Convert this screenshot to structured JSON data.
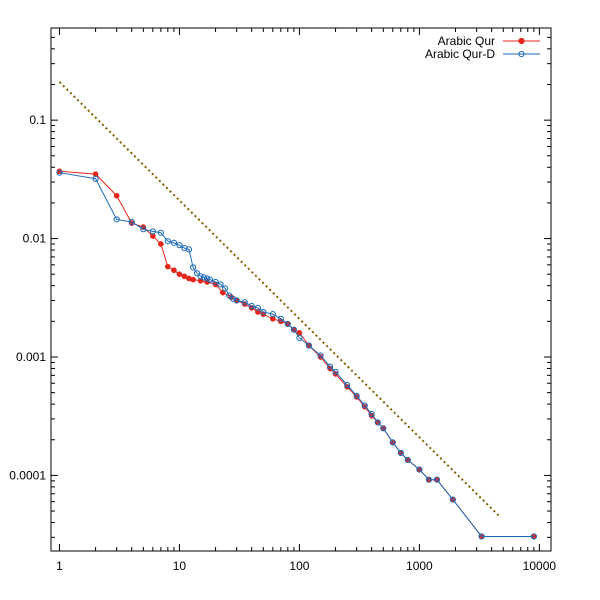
{
  "chart_data": {
    "type": "line",
    "title": "",
    "xlabel": "",
    "ylabel": "",
    "x_scale": "log",
    "y_scale": "log",
    "xlim": [
      0.85,
      12500
    ],
    "ylim": [
      2.3e-05,
      0.6
    ],
    "x_ticks": [
      {
        "value": 1,
        "label": "1"
      },
      {
        "value": 10,
        "label": "10"
      },
      {
        "value": 100,
        "label": "100"
      },
      {
        "value": 1000,
        "label": "1000"
      },
      {
        "value": 10000,
        "label": "10000"
      }
    ],
    "y_ticks": [
      {
        "value": 0.0001,
        "label": "0.0001"
      },
      {
        "value": 0.001,
        "label": "0.001"
      },
      {
        "value": 0.01,
        "label": "0.01"
      },
      {
        "value": 0.1,
        "label": "0.1"
      }
    ],
    "grid": false,
    "legend": {
      "placement": "top-right"
    },
    "series": [
      {
        "name": "Arabic Qur",
        "color": "#e8251b",
        "marker": "filled-circle",
        "x": [
          1,
          2,
          3,
          4,
          5,
          6,
          7,
          8,
          9,
          10,
          11,
          12,
          13,
          15,
          17,
          20,
          23,
          27,
          30,
          35,
          40,
          45,
          50,
          60,
          70,
          80,
          90,
          100,
          120,
          150,
          180,
          200,
          250,
          300,
          350,
          400,
          450,
          500,
          600,
          700,
          800,
          1000,
          1200,
          1400,
          1900,
          3300,
          9000
        ],
        "y": [
          0.037,
          0.035,
          0.023,
          0.0135,
          0.0125,
          0.0105,
          0.009,
          0.0058,
          0.0054,
          0.005,
          0.0048,
          0.0046,
          0.0045,
          0.0044,
          0.0043,
          0.0041,
          0.0035,
          0.0032,
          0.003,
          0.0028,
          0.0026,
          0.0024,
          0.0023,
          0.0021,
          0.002,
          0.0019,
          0.0017,
          0.0016,
          0.00125,
          0.001,
          0.0008,
          0.00072,
          0.00056,
          0.00046,
          0.00038,
          0.00032,
          0.00028,
          0.00025,
          0.00019,
          0.000155,
          0.000135,
          0.000112,
          9.2e-05,
          9.2e-05,
          6.25e-05,
          3.05e-05,
          3.05e-05
        ]
      },
      {
        "name": "Arabic Qur-D",
        "color": "#1c6bb8",
        "marker": "open-circle",
        "x": [
          1,
          2,
          3,
          4,
          5,
          6,
          7,
          8,
          9,
          10,
          11,
          12,
          13,
          14,
          15,
          16,
          17,
          18,
          20,
          22,
          24,
          26,
          28,
          30,
          35,
          40,
          45,
          50,
          60,
          70,
          80,
          90,
          100,
          120,
          150,
          180,
          200,
          250,
          300,
          350,
          400,
          450,
          500,
          600,
          700,
          800,
          1000,
          1200,
          1400,
          1900,
          3300,
          9000
        ],
        "y": [
          0.036,
          0.032,
          0.0145,
          0.0138,
          0.012,
          0.0115,
          0.0112,
          0.0095,
          0.0092,
          0.0088,
          0.0083,
          0.0081,
          0.0057,
          0.0051,
          0.0048,
          0.0047,
          0.0046,
          0.0045,
          0.0043,
          0.0041,
          0.0038,
          0.0033,
          0.0031,
          0.003,
          0.0029,
          0.0027,
          0.0026,
          0.0024,
          0.0023,
          0.0021,
          0.0019,
          0.0017,
          0.00145,
          0.00125,
          0.00103,
          0.00083,
          0.00075,
          0.00058,
          0.00047,
          0.00039,
          0.00033,
          0.00028,
          0.00025,
          0.00019,
          0.000155,
          0.000135,
          0.000112,
          9.2e-05,
          9.2e-05,
          6.25e-05,
          3.05e-05,
          3.05e-05
        ]
      },
      {
        "name": "",
        "color": "#806000",
        "style": "dotted",
        "marker": "none",
        "x": [
          1,
          4600
        ],
        "y": [
          0.21,
          4.56e-05
        ]
      }
    ]
  }
}
